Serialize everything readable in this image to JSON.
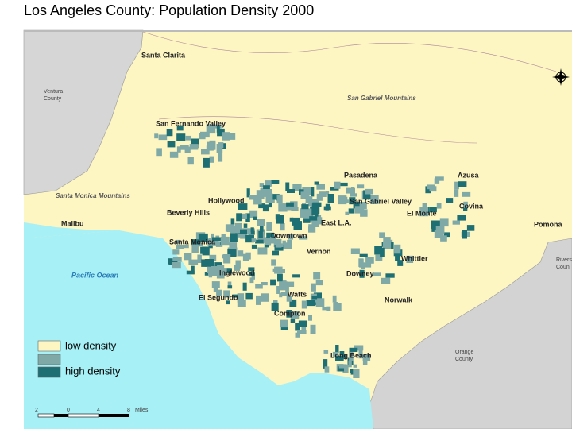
{
  "title": "Los Angeles County: Population Density 2000",
  "places": [
    "Santa Clarita",
    "San Fernando Valley",
    "Pasadena",
    "Azusa",
    "Hollywood",
    "San Gabriel Valley",
    "Covina",
    "Beverly Hills",
    "El Monte",
    "Malibu",
    "East L.A.",
    "Pomona",
    "Downtown",
    "Santa Monica",
    "Vernon",
    "Whittier",
    "Inglewood",
    "Downey",
    "El Segundo",
    "Watts",
    "Norwalk",
    "Compton",
    "Long Beach"
  ],
  "mountains": [
    "San Gabriel Mountains",
    "Santa Monica Mountains"
  ],
  "ocean": "Pacific Ocean",
  "neighbors": [
    [
      "Ventura",
      "County"
    ],
    [
      "Rivers",
      "Coun"
    ],
    [
      "Orange",
      "County"
    ]
  ],
  "legend": [
    "low density",
    "high density"
  ],
  "scale": [
    "2",
    "0",
    "4",
    "8",
    "Miles"
  ]
}
